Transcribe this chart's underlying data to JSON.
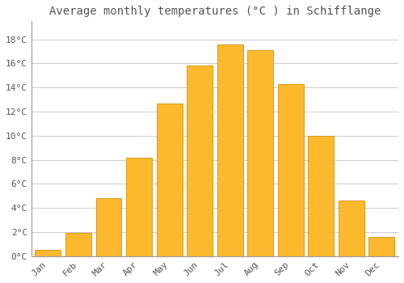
{
  "title": "Average monthly temperatures (°C ) in Schifflange",
  "months": [
    "Jan",
    "Feb",
    "Mar",
    "Apr",
    "May",
    "Jun",
    "Jul",
    "Aug",
    "Sep",
    "Oct",
    "Nov",
    "Dec"
  ],
  "values": [
    0.5,
    1.9,
    4.8,
    8.2,
    12.7,
    15.8,
    17.6,
    17.1,
    14.3,
    10.0,
    4.6,
    1.6
  ],
  "bar_color": "#FDB92E",
  "bar_edge_color": "#D4910A",
  "background_color": "#FFFFFF",
  "grid_color": "#CCCCCC",
  "text_color": "#555555",
  "ylim": [
    0,
    19.5
  ],
  "yticks": [
    0,
    2,
    4,
    6,
    8,
    10,
    12,
    14,
    16,
    18
  ],
  "title_fontsize": 10,
  "tick_fontsize": 8
}
